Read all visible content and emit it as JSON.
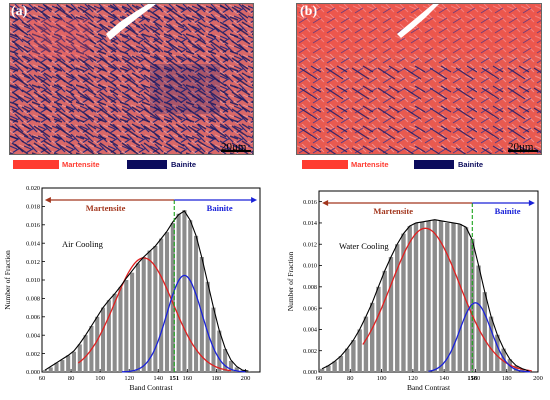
{
  "panels": [
    {
      "label": "(a)",
      "scale": "20μm",
      "legend": [
        {
          "name": "Martensite",
          "color": "#ff3b30"
        },
        {
          "name": "Bainite",
          "color": "#0b0b5c"
        }
      ]
    },
    {
      "label": "(b)",
      "scale": "20μm",
      "legend": [
        {
          "name": "Martensite",
          "color": "#ff3b30"
        },
        {
          "name": "Bainite",
          "color": "#0b0b5c"
        }
      ]
    }
  ],
  "colors": {
    "histogram_bar": "#8c8c8c",
    "envelope": "#000000",
    "martensite_fit": "#e02020",
    "bainite_fit": "#1a22d8",
    "threshold": "#19a319",
    "martensite_arrow": "#a2361d",
    "bainite_arrow": "#1a22d8"
  },
  "chart_data": [
    {
      "type": "bar",
      "annotation": "Air Cooling",
      "xlabel": "Band Contrast",
      "ylabel": "Number of Fraction",
      "xlim": [
        60,
        210
      ],
      "ylim": [
        0,
        0.02
      ],
      "xticks": [
        60,
        80,
        100,
        120,
        140,
        160,
        180,
        200
      ],
      "yticks": [
        0.0,
        0.002,
        0.004,
        0.006,
        0.008,
        0.01,
        0.012,
        0.014,
        0.016,
        0.018,
        0.02
      ],
      "ytick_labels": [
        "0.000",
        "0.002",
        "0.004",
        "0.006",
        "0.008",
        "0.010",
        "0.012",
        "0.014",
        "0.016",
        "0.018",
        "0.020"
      ],
      "threshold": 151,
      "threshold_label": "151",
      "regions": [
        {
          "name": "Martensite",
          "from": 62,
          "to": 151,
          "color": "#a2361d"
        },
        {
          "name": "Bainite",
          "from": 151,
          "to": 208,
          "color": "#1a22d8"
        }
      ],
      "x": [
        62,
        66,
        70,
        74,
        78,
        82,
        86,
        90,
        94,
        98,
        102,
        106,
        110,
        114,
        118,
        122,
        126,
        130,
        134,
        138,
        142,
        146,
        150,
        154,
        158,
        162,
        166,
        170,
        174,
        178,
        182,
        186,
        190,
        194,
        198,
        202
      ],
      "values": [
        0.0002,
        0.0005,
        0.001,
        0.0013,
        0.0018,
        0.0022,
        0.003,
        0.004,
        0.005,
        0.006,
        0.007,
        0.0078,
        0.0085,
        0.0092,
        0.01,
        0.0108,
        0.0118,
        0.0125,
        0.0132,
        0.0137,
        0.0145,
        0.0152,
        0.0162,
        0.0172,
        0.0176,
        0.0165,
        0.0148,
        0.0125,
        0.0098,
        0.007,
        0.0045,
        0.0025,
        0.0012,
        0.0005,
        0.0002,
        0.0001
      ],
      "envelope": [
        0.0002,
        0.0006,
        0.001,
        0.0014,
        0.0018,
        0.0023,
        0.0031,
        0.004,
        0.005,
        0.006,
        0.007,
        0.0078,
        0.0085,
        0.0093,
        0.0102,
        0.011,
        0.0118,
        0.0125,
        0.0131,
        0.0137,
        0.0145,
        0.0153,
        0.0163,
        0.0171,
        0.0175,
        0.0165,
        0.0148,
        0.0124,
        0.0097,
        0.007,
        0.0045,
        0.0026,
        0.0013,
        0.0006,
        0.0002,
        0.0001
      ],
      "fit_martensite": {
        "mu": 130,
        "sigma": 20,
        "peak": 0.0124,
        "range": [
          85,
          190
        ]
      },
      "fit_bainite": {
        "mu": 158,
        "sigma": 12,
        "peak": 0.0105,
        "range": [
          115,
          200
        ]
      }
    },
    {
      "type": "bar",
      "annotation": "Water Cooling",
      "xlabel": "Band Contrast",
      "ylabel": "Number of Fraction",
      "xlim": [
        60,
        200
      ],
      "ylim": [
        0,
        0.017
      ],
      "xticks": [
        60,
        80,
        100,
        120,
        140,
        160,
        180,
        200
      ],
      "yticks": [
        0.0,
        0.002,
        0.004,
        0.006,
        0.008,
        0.01,
        0.012,
        0.014,
        0.016
      ],
      "ytick_labels": [
        "0.000",
        "0.002",
        "0.004",
        "0.006",
        "0.008",
        "0.010",
        "0.012",
        "0.014",
        "0.016"
      ],
      "threshold": 158,
      "threshold_label": "158",
      "regions": [
        {
          "name": "Martensite",
          "from": 62,
          "to": 158,
          "color": "#a2361d"
        },
        {
          "name": "Bainite",
          "from": 158,
          "to": 198,
          "color": "#1a22d8"
        }
      ],
      "x": [
        62,
        66,
        70,
        74,
        78,
        82,
        86,
        90,
        94,
        98,
        102,
        106,
        110,
        114,
        118,
        122,
        126,
        130,
        134,
        138,
        142,
        146,
        150,
        154,
        158,
        162,
        166,
        170,
        174,
        178,
        182,
        186,
        190,
        194
      ],
      "values": [
        0.0003,
        0.0006,
        0.001,
        0.0015,
        0.0022,
        0.003,
        0.004,
        0.0052,
        0.0065,
        0.008,
        0.0095,
        0.0108,
        0.012,
        0.013,
        0.0137,
        0.014,
        0.0141,
        0.0142,
        0.0143,
        0.0142,
        0.014,
        0.014,
        0.0139,
        0.0136,
        0.0125,
        0.01,
        0.0075,
        0.0052,
        0.0035,
        0.0022,
        0.0012,
        0.0006,
        0.0003,
        0.0001
      ],
      "envelope": [
        0.0003,
        0.0006,
        0.001,
        0.0015,
        0.0022,
        0.003,
        0.004,
        0.0052,
        0.0065,
        0.008,
        0.0095,
        0.0108,
        0.012,
        0.013,
        0.0137,
        0.014,
        0.0141,
        0.0142,
        0.0143,
        0.0142,
        0.0141,
        0.014,
        0.0139,
        0.0136,
        0.0124,
        0.01,
        0.0075,
        0.0052,
        0.0035,
        0.0022,
        0.0012,
        0.0006,
        0.0003,
        0.0001
      ],
      "fit_martensite": {
        "mu": 128,
        "sigma": 22,
        "peak": 0.0135,
        "range": [
          88,
          196
        ]
      },
      "fit_bainite": {
        "mu": 160,
        "sigma": 10,
        "peak": 0.0065,
        "range": [
          130,
          195
        ]
      }
    }
  ]
}
